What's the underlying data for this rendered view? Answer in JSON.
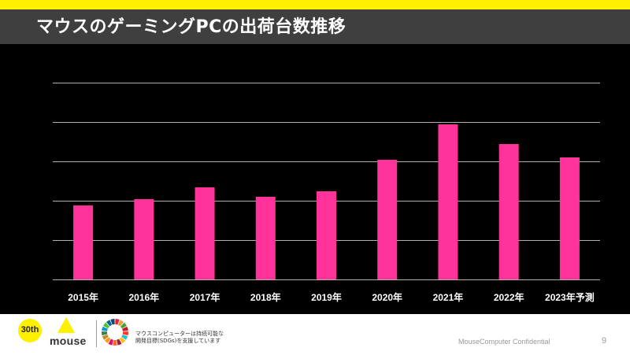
{
  "header": {
    "title": "マウスのゲーミングPCの出荷台数推移"
  },
  "colors": {
    "accent_bar": "#ff3399",
    "top_band": "#fff000",
    "title_band": "#3f3f3f",
    "gridline": "#b0b0b0",
    "background": "#000000"
  },
  "chart_data": {
    "type": "bar",
    "title": "マウスのゲーミングPCの出荷台数推移",
    "xlabel": "",
    "ylabel": "",
    "y_units": "relative (one unit per gridline; no y-axis labels shown)",
    "categories": [
      "2015年",
      "2016年",
      "2017年",
      "2018年",
      "2019年",
      "2020年",
      "2021年",
      "2022年",
      "2023年予測"
    ],
    "values": [
      1.88,
      2.04,
      2.34,
      2.1,
      2.24,
      3.04,
      3.94,
      3.44,
      3.1
    ],
    "ylim": [
      0,
      5
    ],
    "gridlines": [
      0,
      1,
      2,
      3,
      4,
      5
    ],
    "grid": true,
    "y_tick_labels_visible": false,
    "legend": "none",
    "bar_color": "#ff3399"
  },
  "footer": {
    "anniversary_badge": "30th",
    "brand": "mouse",
    "sdgs_line1": "マウスコンピューターは持続可能な",
    "sdgs_line2": "開発目標(SDGs)を支援しています",
    "confidential": "MouseComputer Confidential",
    "page_number": "9"
  }
}
